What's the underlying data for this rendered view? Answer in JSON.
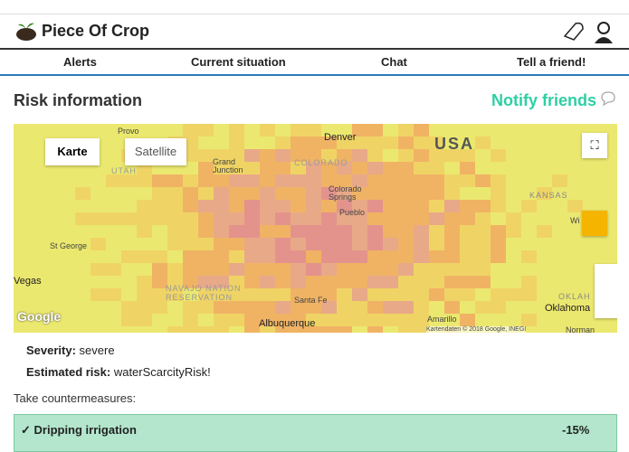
{
  "header": {
    "title": "Piece Of Crop"
  },
  "nav": [
    "Alerts",
    "Current situation",
    "Chat",
    "Tell a friend!"
  ],
  "section": {
    "title": "Risk information",
    "action": "Notify friends"
  },
  "map": {
    "buttons": [
      "Karte",
      "Satellite"
    ],
    "labels": [
      "Provo",
      "Denver",
      "USA",
      "COLORADO",
      "Grand Junction",
      "UTAH",
      "Colorado Springs",
      "Pueblo",
      "KANSAS",
      "St George",
      "Vegas",
      "NAVAJO NATION RESERVATION",
      "Santa Fe",
      "Albuquerque",
      "Amarillo",
      "OKLAH",
      "Oklahoma",
      "Wi",
      "Norman"
    ],
    "logo": "Google",
    "attribution": "Kartendaten © 2018 Google, INEGI"
  },
  "details": [
    {
      "label": "Severity:",
      "value": "severe"
    },
    {
      "label": "Estimated risk:",
      "value": "waterScarcityRisk!"
    }
  ],
  "countermeasures": {
    "title": "Take countermeasures:",
    "items": [
      {
        "name": "✓ Dripping irrigation",
        "effect": "-15%"
      }
    ]
  }
}
